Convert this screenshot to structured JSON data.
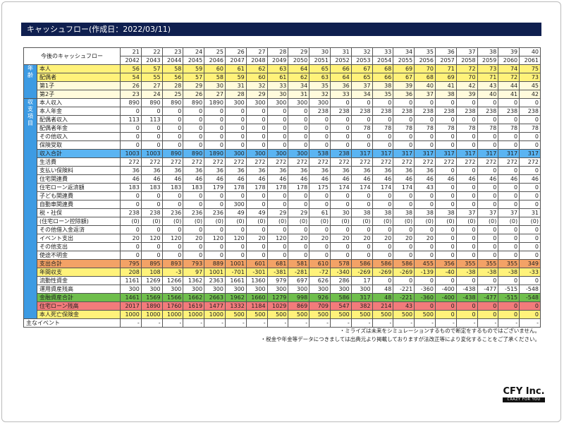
{
  "title": "キャッシュフロー(作成日：2022/03/11)",
  "table": {
    "header_label": "今後のキャッシュフロー",
    "ages_header": [
      21,
      22,
      23,
      24,
      25,
      26,
      27,
      28,
      29,
      30,
      31,
      32,
      33,
      34,
      35,
      36,
      37,
      38,
      39,
      40
    ],
    "years_header": [
      2042,
      2043,
      2044,
      2045,
      2046,
      2047,
      2048,
      2049,
      2050,
      2051,
      2052,
      2053,
      2054,
      2055,
      2056,
      2057,
      2058,
      2059,
      2060,
      2061
    ],
    "groups": [
      {
        "label": "年齢",
        "rows": 4
      },
      {
        "label": "収支項目",
        "rows": 26
      }
    ],
    "rows": [
      {
        "label": "本人",
        "style": "yellow",
        "values": [
          56,
          57,
          58,
          59,
          60,
          61,
          62,
          63,
          64,
          65,
          66,
          67,
          68,
          69,
          70,
          71,
          72,
          73,
          74,
          75
        ]
      },
      {
        "label": "配偶者",
        "style": "yellow",
        "values": [
          54,
          55,
          56,
          57,
          58,
          59,
          60,
          61,
          62,
          63,
          64,
          65,
          66,
          67,
          68,
          69,
          70,
          71,
          72,
          73
        ]
      },
      {
        "label": "第1子",
        "style": "lightyellow",
        "values": [
          26,
          27,
          28,
          29,
          30,
          31,
          32,
          33,
          34,
          35,
          36,
          37,
          38,
          39,
          40,
          41,
          42,
          43,
          44,
          45
        ]
      },
      {
        "label": "第2子",
        "style": "lightyellow",
        "values": [
          23,
          24,
          25,
          26,
          27,
          28,
          29,
          30,
          31,
          32,
          33,
          34,
          35,
          36,
          37,
          38,
          39,
          40,
          41,
          42
        ]
      },
      {
        "label": "本人収入",
        "style": "",
        "values": [
          890,
          890,
          890,
          890,
          1890,
          300,
          300,
          300,
          300,
          300,
          0,
          0,
          0,
          0,
          0,
          0,
          0,
          0,
          0,
          0
        ]
      },
      {
        "label": "本人年金",
        "style": "",
        "values": [
          0,
          0,
          0,
          0,
          0,
          0,
          0,
          0,
          0,
          238,
          238,
          238,
          238,
          238,
          238,
          238,
          238,
          238,
          238,
          238
        ]
      },
      {
        "label": "配偶者収入",
        "style": "",
        "values": [
          113,
          113,
          0,
          0,
          0,
          0,
          0,
          0,
          0,
          0,
          0,
          0,
          0,
          0,
          0,
          0,
          0,
          0,
          0,
          0
        ]
      },
      {
        "label": "配偶者年金",
        "style": "",
        "values": [
          0,
          0,
          0,
          0,
          0,
          0,
          0,
          0,
          0,
          0,
          0,
          78,
          78,
          78,
          78,
          78,
          78,
          78,
          78,
          78
        ]
      },
      {
        "label": "その他収入",
        "style": "",
        "values": [
          0,
          0,
          0,
          0,
          0,
          0,
          0,
          0,
          0,
          0,
          0,
          0,
          0,
          0,
          0,
          0,
          0,
          0,
          0,
          0
        ]
      },
      {
        "label": "保険受取",
        "style": "",
        "values": [
          0,
          0,
          0,
          0,
          0,
          0,
          0,
          0,
          0,
          0,
          0,
          0,
          0,
          0,
          0,
          0,
          0,
          0,
          0,
          0
        ]
      },
      {
        "label": "収入合計",
        "style": "blue",
        "values": [
          1003,
          1003,
          890,
          890,
          1890,
          300,
          300,
          300,
          300,
          538,
          238,
          317,
          317,
          317,
          317,
          317,
          317,
          317,
          317,
          317
        ]
      },
      {
        "label": "生活費",
        "style": "",
        "values": [
          272,
          272,
          272,
          272,
          272,
          272,
          272,
          272,
          272,
          272,
          272,
          272,
          272,
          272,
          272,
          272,
          272,
          272,
          272,
          272
        ]
      },
      {
        "label": "支払い保険料",
        "style": "",
        "values": [
          36,
          36,
          36,
          36,
          36,
          36,
          36,
          36,
          36,
          36,
          36,
          36,
          36,
          36,
          36,
          0,
          0,
          0,
          0,
          0
        ]
      },
      {
        "label": "住宅関連費",
        "style": "",
        "values": [
          46,
          46,
          46,
          46,
          46,
          46,
          46,
          46,
          46,
          46,
          46,
          46,
          46,
          46,
          46,
          46,
          46,
          46,
          46,
          46
        ]
      },
      {
        "label": "住宅ローン返済額",
        "style": "",
        "values": [
          183,
          183,
          183,
          183,
          179,
          178,
          178,
          178,
          178,
          175,
          174,
          174,
          174,
          174,
          43,
          0,
          0,
          0,
          0,
          0
        ]
      },
      {
        "label": "子ども関連費",
        "style": "",
        "values": [
          0,
          0,
          0,
          0,
          0,
          0,
          0,
          0,
          0,
          0,
          0,
          0,
          0,
          0,
          0,
          0,
          0,
          0,
          0,
          0
        ]
      },
      {
        "label": "自動車関連費",
        "style": "",
        "values": [
          0,
          0,
          0,
          0,
          0,
          300,
          0,
          0,
          0,
          0,
          0,
          0,
          0,
          0,
          0,
          0,
          0,
          0,
          0,
          0
        ]
      },
      {
        "label": "税・社保",
        "style": "",
        "values": [
          238,
          238,
          236,
          236,
          236,
          49,
          49,
          29,
          29,
          61,
          30,
          38,
          38,
          38,
          38,
          38,
          37,
          37,
          37,
          31
        ]
      },
      {
        "label": "(住宅ローン控除額)",
        "style": "",
        "values": [
          "(0)",
          "(0)",
          "(0)",
          "(0)",
          "(0)",
          "(0)",
          "(0)",
          "(0)",
          "(0)",
          "(0)",
          "(0)",
          "(0)",
          "(0)",
          "(0)",
          "(0)",
          "(0)",
          "(0)",
          "(0)",
          "(0)",
          "(0)"
        ]
      },
      {
        "label": "その他借入金返済",
        "style": "",
        "values": [
          0,
          0,
          0,
          0,
          0,
          0,
          0,
          0,
          0,
          0,
          0,
          0,
          0,
          0,
          0,
          0,
          0,
          0,
          0,
          0
        ]
      },
      {
        "label": "イベント支出",
        "style": "",
        "values": [
          20,
          120,
          120,
          20,
          120,
          120,
          20,
          120,
          20,
          20,
          20,
          20,
          20,
          20,
          20,
          0,
          0,
          0,
          0,
          0
        ]
      },
      {
        "label": "その他支出",
        "style": "",
        "values": [
          0,
          0,
          0,
          0,
          0,
          0,
          0,
          0,
          0,
          0,
          0,
          0,
          0,
          0,
          0,
          0,
          0,
          0,
          0,
          0
        ]
      },
      {
        "label": "使途不明金",
        "style": "",
        "values": [
          0,
          0,
          0,
          0,
          0,
          0,
          0,
          0,
          0,
          0,
          0,
          0,
          0,
          0,
          0,
          0,
          0,
          0,
          0,
          0
        ]
      },
      {
        "label": "支出合計",
        "style": "orange",
        "values": [
          795,
          895,
          893,
          793,
          889,
          1001,
          601,
          681,
          581,
          610,
          578,
          586,
          586,
          586,
          455,
          356,
          355,
          355,
          355,
          349
        ]
      },
      {
        "label": "年間収支",
        "style": "yellow",
        "values": [
          208,
          108,
          -3,
          97,
          1001,
          -701,
          -301,
          -381,
          -281,
          -72,
          -340,
          -269,
          -269,
          -269,
          -139,
          -40,
          -38,
          -38,
          -38,
          -33
        ]
      },
      {
        "label": "流動性資金",
        "style": "",
        "values": [
          1161,
          1269,
          1266,
          1362,
          2363,
          1661,
          1360,
          979,
          697,
          626,
          286,
          17,
          0,
          0,
          0,
          0,
          0,
          0,
          0,
          0
        ]
      },
      {
        "label": "運用資産残高",
        "style": "",
        "values": [
          300,
          300,
          300,
          300,
          300,
          300,
          300,
          300,
          300,
          300,
          300,
          300,
          48,
          -221,
          -360,
          -400,
          -438,
          -477,
          -515,
          -548
        ]
      },
      {
        "label": "金融資産合計",
        "style": "green",
        "values": [
          1461,
          1569,
          1566,
          1662,
          2663,
          1962,
          1660,
          1279,
          998,
          926,
          586,
          317,
          48,
          -221,
          -360,
          -400,
          -438,
          -477,
          -515,
          -548
        ]
      },
      {
        "label": "住宅ローン残高",
        "style": "red",
        "values": [
          2017,
          1890,
          1760,
          1619,
          1477,
          1332,
          1184,
          1029,
          869,
          709,
          547,
          382,
          214,
          43,
          0,
          0,
          0,
          0,
          0,
          0
        ]
      },
      {
        "label": "本人死亡保険金",
        "style": "yellow",
        "values": [
          1000,
          1000,
          1000,
          1000,
          1000,
          500,
          500,
          500,
          500,
          500,
          500,
          500,
          500,
          500,
          500,
          0,
          0,
          0,
          0,
          0
        ]
      }
    ],
    "events_row": {
      "label": "主なイベント",
      "values": [
        "-",
        "-",
        "-",
        "-",
        "-",
        "-",
        "-",
        "-",
        "-",
        "-",
        "-",
        "-",
        "-",
        "-",
        "-",
        "-",
        "-",
        "-",
        "-",
        "-"
      ]
    }
  },
  "notes": [
    "・ミライズは未来をシミュレーションするもので断定をするものではございません。",
    "・税金や年金等データにつきましては出典元より掲載しておりますが法改正等により変化することをご了承ください。"
  ],
  "logo": {
    "name": "CFY Inc.",
    "tagline": "CRAZY FOR YOU"
  }
}
